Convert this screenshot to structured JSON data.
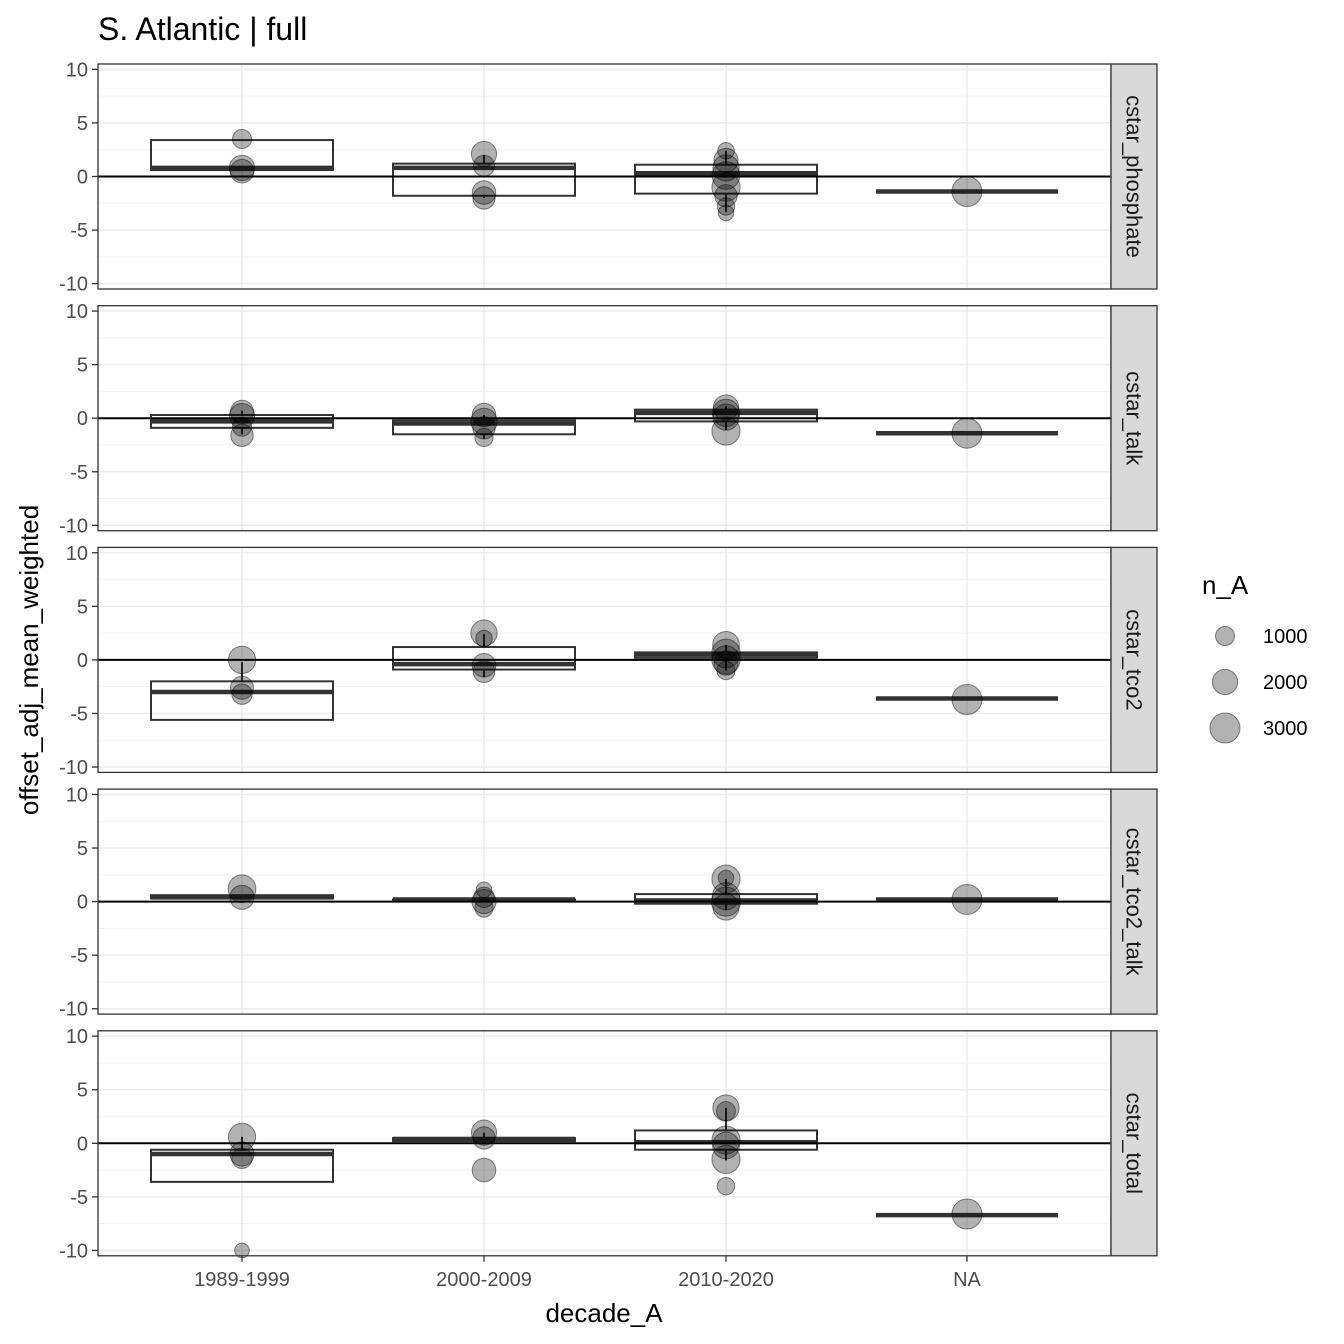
{
  "chart_data": {
    "type": "boxplot",
    "title": "S. Atlantic | full",
    "xlabel": "decade_A",
    "ylabel": "offset_adj_mean_weighted",
    "categories": [
      "1989-1999",
      "2000-2009",
      "2010-2020",
      "NA"
    ],
    "ylim": [
      -10.5,
      10.5
    ],
    "y_ticks": [
      10,
      5,
      0,
      -5,
      -10
    ],
    "y_tick_labels": [
      "10",
      "5",
      "0",
      "-5",
      "-10"
    ],
    "reference_line_y": 0,
    "grid": true,
    "legend": {
      "title": "n_A",
      "position": "right",
      "entries": [
        {
          "label": "1000",
          "value": 1000
        },
        {
          "label": "2000",
          "value": 2000
        },
        {
          "label": "3000",
          "value": 3000
        }
      ]
    },
    "colors": {
      "point_fill": "#000000",
      "point_alpha": 0.3,
      "box_stroke": "#333333",
      "grid": "#ebebeb",
      "strip_fill": "#d9d9d9",
      "strip_border": "#333333"
    },
    "facets": [
      {
        "label": "cstar_phosphate",
        "boxes": [
          {
            "category": "1989-1999",
            "q1": 0.6,
            "median": 0.8,
            "q3": 3.4,
            "wmin": 0.6,
            "wmax": 3.4
          },
          {
            "category": "2000-2009",
            "q1": -1.8,
            "median": 0.8,
            "q3": 1.2,
            "wmin": -2.0,
            "wmax": 2.0
          },
          {
            "category": "2010-2020",
            "q1": -1.6,
            "median": 0.3,
            "q3": 1.1,
            "wmin": -3.3,
            "wmax": 2.4
          },
          {
            "category": "NA",
            "q1": -1.4,
            "median": -1.4,
            "q3": -1.4,
            "wmin": -1.4,
            "wmax": -1.4
          }
        ],
        "points": [
          {
            "category": "1989-1999",
            "y": 3.5,
            "n": 1000
          },
          {
            "category": "1989-1999",
            "y": 0.8,
            "n": 2000
          },
          {
            "category": "1989-1999",
            "y": 0.5,
            "n": 1700
          },
          {
            "category": "2000-2009",
            "y": 2.1,
            "n": 2000
          },
          {
            "category": "2000-2009",
            "y": 1.0,
            "n": 1300
          },
          {
            "category": "2000-2009",
            "y": -1.5,
            "n": 1700
          },
          {
            "category": "2000-2009",
            "y": -2.0,
            "n": 1500
          },
          {
            "category": "2010-2020",
            "y": 2.4,
            "n": 700
          },
          {
            "category": "2010-2020",
            "y": 1.5,
            "n": 1800
          },
          {
            "category": "2010-2020",
            "y": 0.8,
            "n": 2200
          },
          {
            "category": "2010-2020",
            "y": 0.1,
            "n": 2500
          },
          {
            "category": "2010-2020",
            "y": -1.0,
            "n": 2600
          },
          {
            "category": "2010-2020",
            "y": -1.8,
            "n": 1500
          },
          {
            "category": "2010-2020",
            "y": -2.8,
            "n": 800
          },
          {
            "category": "2010-2020",
            "y": -3.4,
            "n": 600
          },
          {
            "category": "NA",
            "y": -1.4,
            "n": 3000
          }
        ]
      },
      {
        "label": "cstar_talk",
        "boxes": [
          {
            "category": "1989-1999",
            "q1": -0.9,
            "median": -0.3,
            "q3": 0.3,
            "wmin": -1.5,
            "wmax": 0.7
          },
          {
            "category": "2000-2009",
            "q1": -1.5,
            "median": -0.5,
            "q3": -0.2,
            "wmin": -1.9,
            "wmax": 0.3
          },
          {
            "category": "2010-2020",
            "q1": -0.3,
            "median": 0.5,
            "q3": 0.8,
            "wmin": -1.1,
            "wmax": 1.1
          },
          {
            "category": "NA",
            "q1": -1.4,
            "median": -1.4,
            "q3": -1.4,
            "wmin": -1.4,
            "wmax": -1.4
          }
        ],
        "points": [
          {
            "category": "1989-1999",
            "y": 0.6,
            "n": 1600
          },
          {
            "category": "1989-1999",
            "y": 0.2,
            "n": 2000
          },
          {
            "category": "1989-1999",
            "y": -0.8,
            "n": 1000
          },
          {
            "category": "1989-1999",
            "y": -1.6,
            "n": 1500
          },
          {
            "category": "2000-2009",
            "y": 0.3,
            "n": 1700
          },
          {
            "category": "2000-2009",
            "y": -0.3,
            "n": 2200
          },
          {
            "category": "2000-2009",
            "y": -0.9,
            "n": 1500
          },
          {
            "category": "2000-2009",
            "y": -1.8,
            "n": 900
          },
          {
            "category": "2010-2020",
            "y": 1.0,
            "n": 2000
          },
          {
            "category": "2010-2020",
            "y": 0.5,
            "n": 2400
          },
          {
            "category": "2010-2020",
            "y": 0.1,
            "n": 2200
          },
          {
            "category": "2010-2020",
            "y": -1.2,
            "n": 2600
          },
          {
            "category": "NA",
            "y": -1.4,
            "n": 3000
          }
        ]
      },
      {
        "label": "cstar_tco2",
        "boxes": [
          {
            "category": "1989-1999",
            "q1": -5.6,
            "median": -3.0,
            "q3": -2.0,
            "wmin": -5.6,
            "wmax": -0.2
          },
          {
            "category": "2000-2009",
            "q1": -0.9,
            "median": -0.4,
            "q3": 1.2,
            "wmin": -1.6,
            "wmax": 2.4
          },
          {
            "category": "2010-2020",
            "q1": 0.2,
            "median": 0.5,
            "q3": 0.7,
            "wmin": -1.0,
            "wmax": 1.4
          },
          {
            "category": "NA",
            "q1": -3.6,
            "median": -3.6,
            "q3": -3.6,
            "wmin": -3.6,
            "wmax": -3.6
          }
        ],
        "points": [
          {
            "category": "1989-1999",
            "y": 0.0,
            "n": 2400
          },
          {
            "category": "1989-1999",
            "y": -2.6,
            "n": 1600
          },
          {
            "category": "1989-1999",
            "y": -3.2,
            "n": 1200
          },
          {
            "category": "2000-2009",
            "y": 2.5,
            "n": 2200
          },
          {
            "category": "2000-2009",
            "y": 2.0,
            "n": 700
          },
          {
            "category": "2000-2009",
            "y": -0.5,
            "n": 1700
          },
          {
            "category": "2000-2009",
            "y": -1.1,
            "n": 1400
          },
          {
            "category": "2010-2020",
            "y": 1.4,
            "n": 2300
          },
          {
            "category": "2010-2020",
            "y": 0.6,
            "n": 2700
          },
          {
            "category": "2010-2020",
            "y": 0.0,
            "n": 2600
          },
          {
            "category": "2010-2020",
            "y": -0.3,
            "n": 1800
          },
          {
            "category": "2010-2020",
            "y": -1.0,
            "n": 900
          },
          {
            "category": "NA",
            "y": -3.7,
            "n": 3000
          }
        ]
      },
      {
        "label": "cstar_tco2_talk",
        "boxes": [
          {
            "category": "1989-1999",
            "q1": 0.3,
            "median": 0.4,
            "q3": 0.6,
            "wmin": 0.3,
            "wmax": 0.6
          },
          {
            "category": "2000-2009",
            "q1": 0.1,
            "median": 0.2,
            "q3": 0.2,
            "wmin": 0.1,
            "wmax": 0.2
          },
          {
            "category": "2010-2020",
            "q1": -0.2,
            "median": 0.1,
            "q3": 0.7,
            "wmin": -0.8,
            "wmax": 2.1
          },
          {
            "category": "NA",
            "q1": 0.2,
            "median": 0.2,
            "q3": 0.2,
            "wmin": 0.2,
            "wmax": 0.2
          }
        ],
        "points": [
          {
            "category": "1989-1999",
            "y": 1.2,
            "n": 2500
          },
          {
            "category": "1989-1999",
            "y": 0.4,
            "n": 1800
          },
          {
            "category": "2000-2009",
            "y": 1.1,
            "n": 600
          },
          {
            "category": "2000-2009",
            "y": 0.4,
            "n": 1200
          },
          {
            "category": "2000-2009",
            "y": 0.0,
            "n": 1800
          },
          {
            "category": "2000-2009",
            "y": -0.6,
            "n": 900
          },
          {
            "category": "2010-2020",
            "y": 2.1,
            "n": 2600
          },
          {
            "category": "2010-2020",
            "y": 2.2,
            "n": 600
          },
          {
            "category": "2010-2020",
            "y": 0.5,
            "n": 2400
          },
          {
            "category": "2010-2020",
            "y": 0.0,
            "n": 2800
          },
          {
            "category": "2010-2020",
            "y": -0.5,
            "n": 2200
          },
          {
            "category": "NA",
            "y": 0.2,
            "n": 3000
          }
        ]
      },
      {
        "label": "cstar_total",
        "boxes": [
          {
            "category": "1989-1999",
            "q1": -3.6,
            "median": -1.0,
            "q3": -0.6,
            "wmin": -3.6,
            "wmax": 0.6
          },
          {
            "category": "2000-2009",
            "q1": 0.2,
            "median": 0.4,
            "q3": 0.5,
            "wmin": 0.2,
            "wmax": 1.0
          },
          {
            "category": "2010-2020",
            "q1": -0.6,
            "median": 0.1,
            "q3": 1.2,
            "wmin": -1.6,
            "wmax": 3.3
          },
          {
            "category": "NA",
            "q1": -6.7,
            "median": -6.7,
            "q3": -6.7,
            "wmin": -6.7,
            "wmax": -6.7
          }
        ],
        "points": [
          {
            "category": "1989-1999",
            "y": 0.6,
            "n": 2400
          },
          {
            "category": "1989-1999",
            "y": -1.0,
            "n": 1800
          },
          {
            "category": "1989-1999",
            "y": -1.4,
            "n": 1200
          },
          {
            "category": "1989-1999",
            "y": -10.0,
            "n": 500
          },
          {
            "category": "2000-2009",
            "y": 1.0,
            "n": 2000
          },
          {
            "category": "2000-2009",
            "y": 0.5,
            "n": 1500
          },
          {
            "category": "2000-2009",
            "y": -2.5,
            "n": 1700
          },
          {
            "category": "2010-2020",
            "y": 3.3,
            "n": 2200
          },
          {
            "category": "2010-2020",
            "y": 3.0,
            "n": 1000
          },
          {
            "category": "2010-2020",
            "y": 0.3,
            "n": 2600
          },
          {
            "category": "2010-2020",
            "y": -0.2,
            "n": 2300
          },
          {
            "category": "2010-2020",
            "y": -1.5,
            "n": 2600
          },
          {
            "category": "2010-2020",
            "y": -4.0,
            "n": 800
          },
          {
            "category": "NA",
            "y": -6.6,
            "n": 3000
          }
        ]
      }
    ]
  }
}
